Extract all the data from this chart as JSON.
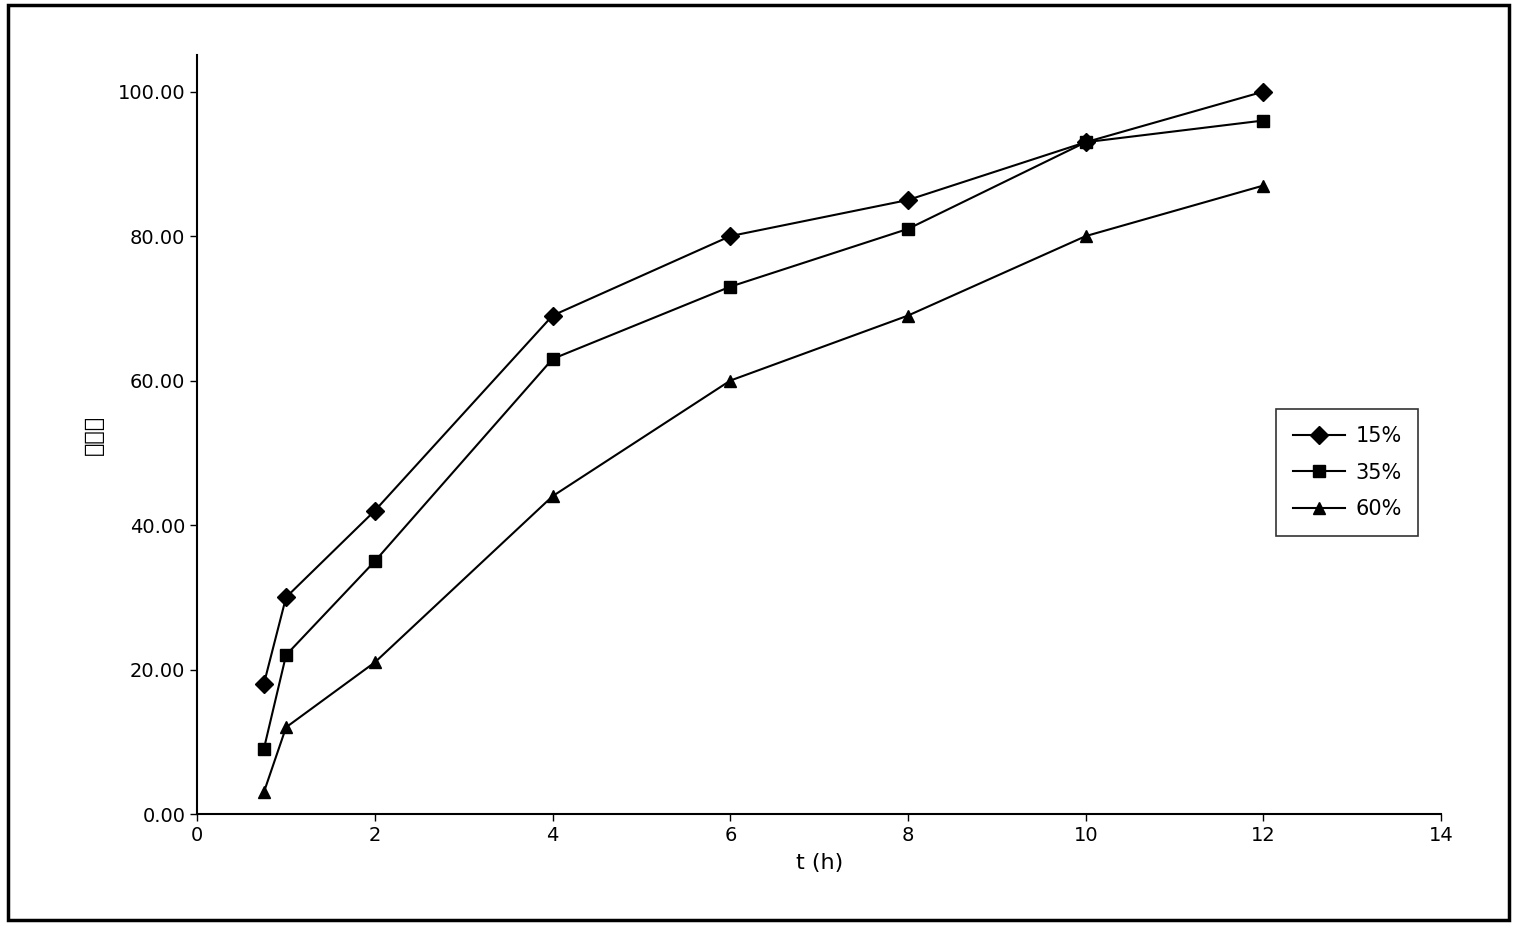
{
  "title": "",
  "xlabel": "t (h)",
  "ylabel": "溢出度",
  "xlim": [
    0,
    14
  ],
  "ylim": [
    0,
    105
  ],
  "xticks": [
    0,
    2,
    4,
    6,
    8,
    10,
    12,
    14
  ],
  "yticks": [
    0.0,
    20.0,
    40.0,
    60.0,
    80.0,
    100.0
  ],
  "series": [
    {
      "label": "15%",
      "x": [
        0.75,
        1,
        2,
        4,
        6,
        8,
        10,
        12
      ],
      "y": [
        18,
        30,
        42,
        69,
        80,
        85,
        93,
        100
      ],
      "marker": "D",
      "color": "#000000"
    },
    {
      "label": "35%",
      "x": [
        0.75,
        1,
        2,
        4,
        6,
        8,
        10,
        12
      ],
      "y": [
        9,
        22,
        35,
        63,
        73,
        81,
        93,
        96
      ],
      "marker": "s",
      "color": "#000000"
    },
    {
      "label": "60%",
      "x": [
        0.75,
        1,
        2,
        4,
        6,
        8,
        10,
        12
      ],
      "y": [
        3,
        12,
        21,
        44,
        60,
        69,
        80,
        87
      ],
      "marker": "^",
      "color": "#000000"
    }
  ],
  "background_color": "#ffffff",
  "grid": false,
  "linewidth": 1.5,
  "markersize": 9,
  "xlabel_fontsize": 16,
  "ylabel_fontsize": 16,
  "tick_fontsize": 14,
  "legend_fontsize": 15,
  "figsize": [
    15.17,
    9.25
  ],
  "dpi": 100
}
